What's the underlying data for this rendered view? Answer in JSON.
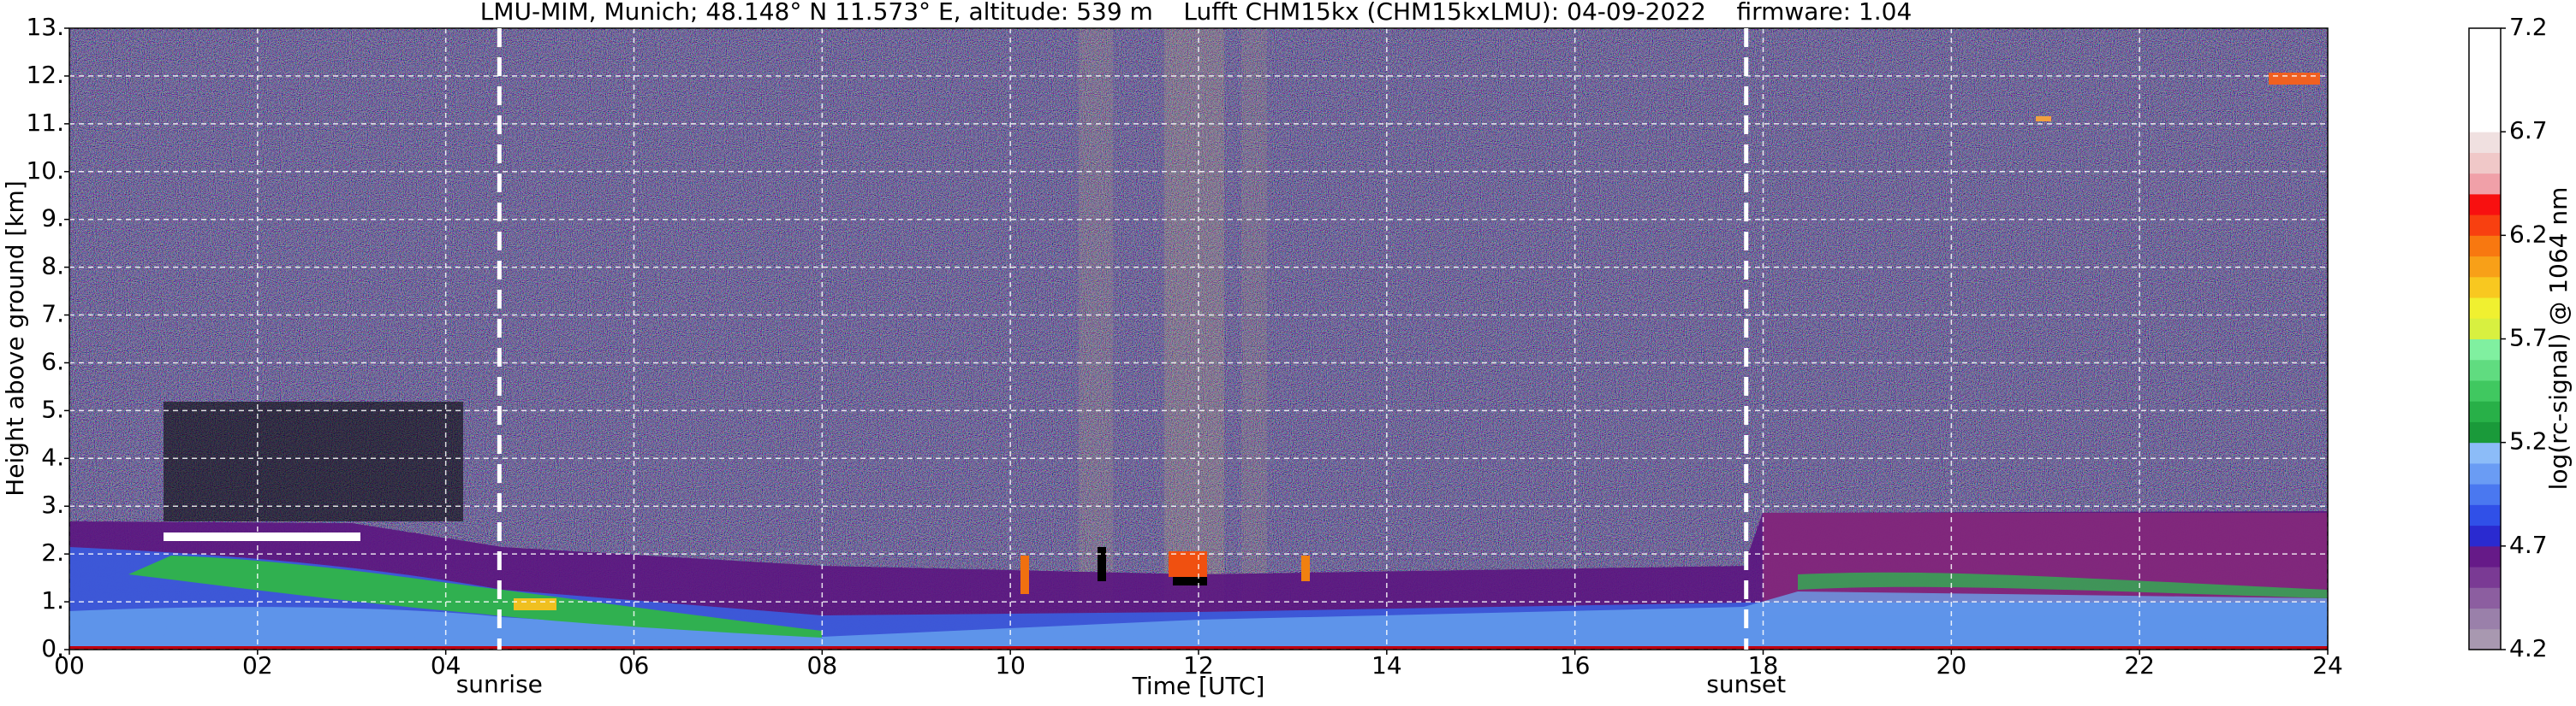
{
  "chart_data": {
    "type": "heatmap",
    "title": "LMU-MIM, Munich; 48.148° N 11.573° E, altitude: 539 m    Lufft CHM15kx (CHM15kxLMU): 04-09-2022    firmware: 1.04",
    "xlabel": "Time [UTC]",
    "ylabel": "Height above ground [km]",
    "xlim": [
      0,
      24
    ],
    "ylim": [
      0,
      13
    ],
    "xticks": [
      {
        "value": 0,
        "label": "00"
      },
      {
        "value": 2,
        "label": "02"
      },
      {
        "value": 4,
        "label": "04"
      },
      {
        "value": 6,
        "label": "06"
      },
      {
        "value": 8,
        "label": "08"
      },
      10,
      12,
      14,
      16,
      18,
      20,
      22,
      24
    ],
    "yticks": [
      {
        "value": 0,
        "label": "0."
      },
      {
        "value": 1,
        "label": "1."
      },
      {
        "value": 2,
        "label": "2."
      },
      {
        "value": 3,
        "label": "3."
      },
      {
        "value": 4,
        "label": "4."
      },
      {
        "value": 5,
        "label": "5."
      },
      {
        "value": 6,
        "label": "6."
      },
      {
        "value": 7,
        "label": "7."
      },
      {
        "value": 8,
        "label": "8."
      },
      {
        "value": 9,
        "label": "9."
      },
      {
        "value": 10,
        "label": "10."
      },
      {
        "value": 11,
        "label": "11."
      },
      {
        "value": 12,
        "label": "12."
      },
      {
        "value": 13,
        "label": "13."
      }
    ],
    "grid": true,
    "annotations": [
      {
        "x": 4.57,
        "label": "sunrise"
      },
      {
        "x": 17.82,
        "label": "sunset"
      }
    ],
    "colorbar": {
      "label": "log(rc-signal) @ 1064 nm",
      "lim": [
        4.2,
        7.2
      ],
      "ticks": [
        4.2,
        4.7,
        5.2,
        5.7,
        6.2,
        6.7,
        7.2
      ],
      "colors": [
        "#a898b0",
        "#9a80aa",
        "#8c5ea0",
        "#7a3a94",
        "#661a88",
        "#2a2ad0",
        "#3050e8",
        "#4a78f0",
        "#6a9cf4",
        "#8cbcf8",
        "#1a9a3a",
        "#28b048",
        "#40c860",
        "#60dc80",
        "#80f0a0",
        "#d8f040",
        "#f0f030",
        "#f8c820",
        "#f8a018",
        "#f87810",
        "#f84010",
        "#f81010",
        "#f0a0a8",
        "#f0c8c8",
        "#f0e0e0",
        "#ffffff",
        "#ffffff",
        "#ffffff",
        "#ffffff",
        "#ffffff"
      ]
    }
  }
}
